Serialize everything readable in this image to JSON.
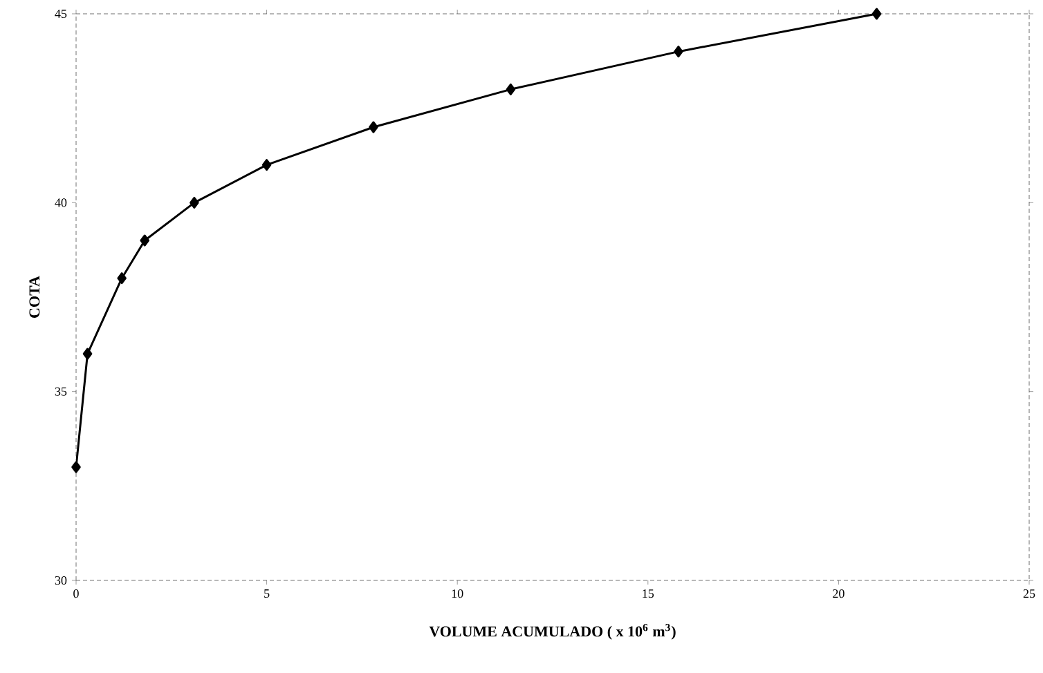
{
  "chart_data": {
    "type": "line",
    "xlabel": "VOLUME ACUMULADO ( x 10$^{6}$ m$^{3}$)",
    "ylabel": "COTA",
    "x": [
      0,
      0.3,
      1.2,
      1.8,
      3.1,
      5.0,
      7.8,
      11.4,
      15.8,
      21.0
    ],
    "series": [
      {
        "color": "#000000",
        "values": [
          33,
          36,
          38,
          39,
          40,
          41,
          42,
          43,
          44,
          45
        ]
      }
    ],
    "xlim": [
      0,
      25
    ],
    "ylim": [
      30,
      45
    ],
    "xticks": [
      0,
      5,
      10,
      15,
      20,
      25
    ],
    "yticks": [
      30,
      35,
      40,
      45
    ],
    "marker": "diamond",
    "line_style": "solid"
  }
}
